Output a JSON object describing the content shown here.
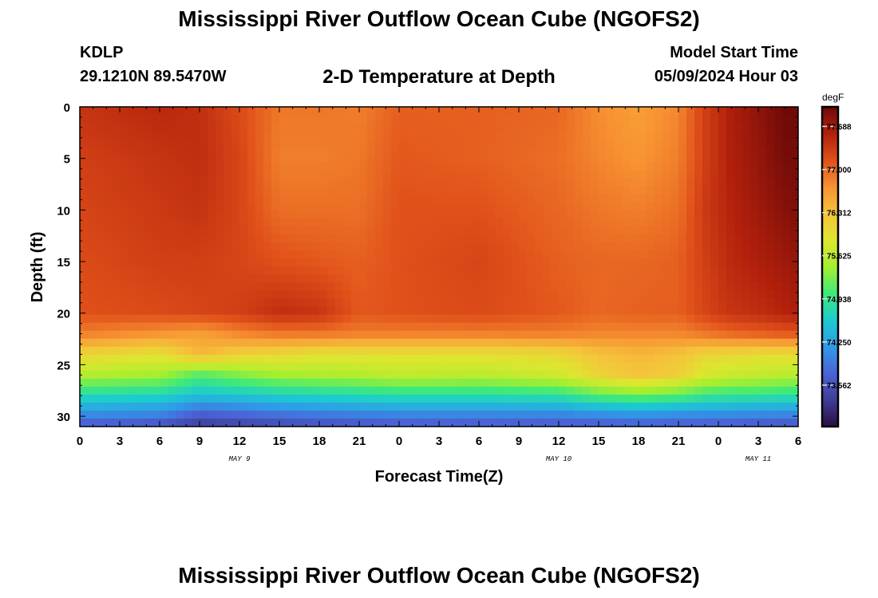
{
  "header": {
    "title": "Mississippi River Outflow Ocean Cube (NGOFS2)",
    "station": "KDLP",
    "coordinates": "29.1210N  89.5470W",
    "subtitle": "2-D Temperature at Depth",
    "model_start_label": "Model Start Time",
    "model_start_value": "05/09/2024 Hour 03"
  },
  "footer": {
    "title": "Mississippi River Outflow Ocean Cube (NGOFS2)"
  },
  "chart_data": {
    "type": "heatmap",
    "title": "2-D Temperature at Depth",
    "xlabel": "Forecast Time(Z)",
    "ylabel": "Depth (ft)",
    "x_ticks": [
      "0",
      "3",
      "6",
      "9",
      "12",
      "15",
      "18",
      "21",
      "0",
      "3",
      "6",
      "9",
      "12",
      "15",
      "18",
      "21",
      "0",
      "3",
      "6"
    ],
    "x_tick_hours": [
      0,
      3,
      6,
      9,
      12,
      15,
      18,
      21,
      24,
      27,
      30,
      33,
      36,
      39,
      42,
      45,
      48,
      51,
      54
    ],
    "xlim_hours": [
      0,
      54
    ],
    "date_labels": [
      {
        "text": "MAY 9",
        "hour": 12
      },
      {
        "text": "MAY 10",
        "hour": 36
      },
      {
        "text": "MAY 11",
        "hour": 51
      }
    ],
    "y_ticks": [
      "0",
      "5",
      "10",
      "15",
      "20",
      "25",
      "30"
    ],
    "y_tick_values": [
      0,
      5,
      10,
      15,
      20,
      25,
      30
    ],
    "ylim": [
      0,
      31
    ],
    "y_inverted": true,
    "colorbar": {
      "unit": "degF",
      "range": [
        72.9,
        78.0
      ],
      "ticks": [
        "77.688",
        "77.000",
        "76.312",
        "75.625",
        "74.938",
        "74.250",
        "73.562"
      ],
      "tick_values": [
        77.688,
        77.0,
        76.312,
        75.625,
        74.938,
        74.25,
        73.562
      ],
      "colors": [
        "#2a0d44",
        "#3f3d96",
        "#4a64d6",
        "#2f9be8",
        "#1ccbd0",
        "#3fea78",
        "#a6ef2e",
        "#dde62f",
        "#f5c33b",
        "#f79232",
        "#e0501a",
        "#b2200c",
        "#6e0a08"
      ]
    },
    "approx_field_degF": {
      "hours": [
        0,
        6,
        9,
        12,
        15,
        18,
        21,
        24,
        30,
        36,
        39,
        42,
        45,
        47,
        49,
        51,
        53,
        54
      ],
      "depths_ft": [
        0,
        5,
        10,
        15,
        20,
        22,
        24,
        26,
        28,
        30,
        31
      ],
      "values": [
        [
          77.4,
          77.5,
          77.45,
          77.2,
          76.9,
          76.9,
          76.85,
          77.05,
          77.05,
          77.0,
          76.75,
          76.6,
          76.8,
          77.3,
          77.6,
          77.8,
          78.0,
          78.0
        ],
        [
          77.3,
          77.4,
          77.45,
          77.25,
          76.85,
          76.85,
          76.9,
          77.1,
          77.05,
          76.95,
          76.8,
          76.7,
          76.85,
          77.3,
          77.6,
          77.75,
          77.95,
          77.95
        ],
        [
          77.25,
          77.35,
          77.4,
          77.25,
          76.95,
          76.95,
          76.95,
          77.15,
          77.15,
          77.0,
          76.9,
          76.85,
          76.95,
          77.35,
          77.55,
          77.7,
          77.85,
          77.9
        ],
        [
          77.2,
          77.3,
          77.3,
          77.25,
          77.15,
          77.1,
          77.05,
          77.15,
          77.25,
          77.05,
          77.0,
          77.0,
          77.05,
          77.3,
          77.5,
          77.6,
          77.7,
          77.75
        ],
        [
          77.15,
          77.2,
          77.25,
          77.3,
          77.45,
          77.4,
          77.1,
          77.15,
          77.2,
          77.1,
          77.0,
          77.05,
          77.05,
          77.25,
          77.4,
          77.45,
          77.55,
          77.6
        ],
        [
          76.85,
          76.7,
          76.6,
          76.8,
          76.9,
          76.9,
          76.85,
          76.85,
          76.85,
          76.85,
          76.8,
          76.8,
          76.8,
          76.9,
          77.0,
          77.05,
          77.1,
          77.1
        ],
        [
          76.1,
          75.95,
          76.4,
          76.15,
          76.05,
          75.95,
          75.95,
          75.95,
          75.95,
          76.05,
          76.3,
          76.4,
          76.3,
          76.1,
          76.05,
          76.0,
          76.0,
          76.0
        ],
        [
          75.55,
          75.45,
          75.1,
          75.3,
          75.45,
          75.5,
          75.55,
          75.65,
          75.6,
          75.75,
          76.1,
          76.3,
          76.15,
          75.8,
          75.7,
          75.65,
          75.6,
          75.6
        ],
        [
          74.75,
          74.7,
          74.5,
          74.55,
          74.65,
          74.7,
          74.75,
          74.8,
          74.8,
          74.85,
          75.1,
          75.2,
          75.1,
          74.95,
          74.9,
          74.9,
          74.85,
          74.85
        ],
        [
          74.0,
          73.95,
          73.6,
          73.7,
          73.8,
          73.85,
          73.9,
          73.95,
          73.95,
          73.95,
          74.0,
          74.05,
          74.0,
          74.0,
          74.0,
          73.95,
          73.95,
          73.95
        ],
        [
          73.6,
          73.5,
          73.3,
          73.35,
          73.45,
          73.5,
          73.55,
          73.6,
          73.6,
          73.6,
          73.6,
          73.65,
          73.6,
          73.6,
          73.6,
          73.55,
          73.55,
          73.55
        ]
      ]
    }
  }
}
